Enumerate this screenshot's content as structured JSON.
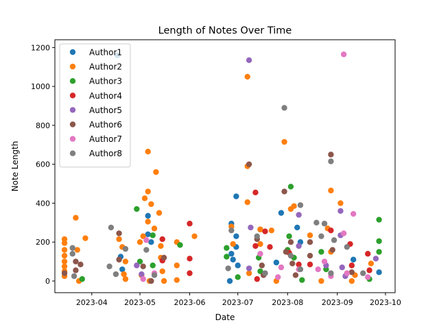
{
  "chart_data": {
    "type": "scatter",
    "title": "Length of Notes Over Time",
    "xlabel": "Date",
    "ylabel": "Note Length",
    "x_ticks": [
      "2023-04",
      "2023-05",
      "2023-06",
      "2023-07",
      "2023-08",
      "2023-09",
      "2023-10"
    ],
    "y_ticks": [
      0,
      200,
      400,
      600,
      800,
      1000,
      1200
    ],
    "xlim": [
      "2023-03-09",
      "2023-10-07"
    ],
    "ylim": [
      -60,
      1240
    ],
    "legend_position": "top-left",
    "grid": false,
    "series": [
      {
        "name": "Author1",
        "color": "#1f77b4",
        "points": [
          {
            "x": "2023-04-17",
            "y": 1160
          },
          {
            "x": "2023-04-19",
            "y": 125
          },
          {
            "x": "2023-04-20",
            "y": 60
          },
          {
            "x": "2023-05-06",
            "y": 335
          },
          {
            "x": "2023-05-06",
            "y": 240
          },
          {
            "x": "2023-05-08",
            "y": 200
          },
          {
            "x": "2023-06-27",
            "y": 295
          },
          {
            "x": "2023-06-27",
            "y": 140
          },
          {
            "x": "2023-06-28",
            "y": 110
          },
          {
            "x": "2023-06-30",
            "y": 435
          },
          {
            "x": "2023-06-30",
            "y": 230
          },
          {
            "x": "2023-06-30",
            "y": 175
          },
          {
            "x": "2023-06-26",
            "y": 0
          },
          {
            "x": "2023-07-01",
            "y": 80
          },
          {
            "x": "2023-07-15",
            "y": 265
          },
          {
            "x": "2023-07-25",
            "y": 95
          },
          {
            "x": "2023-07-28",
            "y": 350
          },
          {
            "x": "2023-08-07",
            "y": 275
          },
          {
            "x": "2023-08-09",
            "y": 200
          },
          {
            "x": "2023-09-11",
            "y": 110
          },
          {
            "x": "2023-09-27",
            "y": 45
          }
        ]
      },
      {
        "name": "Author2",
        "color": "#ff7f0e",
        "points": [
          {
            "x": "2023-03-15",
            "y": 215
          },
          {
            "x": "2023-03-15",
            "y": 195
          },
          {
            "x": "2023-03-15",
            "y": 160
          },
          {
            "x": "2023-03-15",
            "y": 130
          },
          {
            "x": "2023-03-15",
            "y": 100
          },
          {
            "x": "2023-03-15",
            "y": 75
          },
          {
            "x": "2023-03-15",
            "y": 50
          },
          {
            "x": "2023-03-15",
            "y": 25
          },
          {
            "x": "2023-03-22",
            "y": 325
          },
          {
            "x": "2023-03-23",
            "y": 160
          },
          {
            "x": "2023-03-24",
            "y": 0
          },
          {
            "x": "2023-03-28",
            "y": 220
          },
          {
            "x": "2023-04-18",
            "y": 215
          },
          {
            "x": "2023-04-20",
            "y": 175
          },
          {
            "x": "2023-04-21",
            "y": 35
          },
          {
            "x": "2023-04-22",
            "y": 10
          },
          {
            "x": "2023-04-22",
            "y": 100
          },
          {
            "x": "2023-05-01",
            "y": 200
          },
          {
            "x": "2023-05-02",
            "y": 30
          },
          {
            "x": "2023-05-03",
            "y": 230
          },
          {
            "x": "2023-05-04",
            "y": 425
          },
          {
            "x": "2023-05-06",
            "y": 665
          },
          {
            "x": "2023-05-06",
            "y": 460
          },
          {
            "x": "2023-05-06",
            "y": 305
          },
          {
            "x": "2023-05-08",
            "y": 395
          },
          {
            "x": "2023-05-11",
            "y": 560
          },
          {
            "x": "2023-05-10",
            "y": 270
          },
          {
            "x": "2023-05-13",
            "y": 350
          },
          {
            "x": "2023-05-14",
            "y": 180
          },
          {
            "x": "2023-05-14",
            "y": 120
          },
          {
            "x": "2023-05-15",
            "y": 50
          },
          {
            "x": "2023-05-16",
            "y": 0
          },
          {
            "x": "2023-05-07",
            "y": 0
          },
          {
            "x": "2023-05-24",
            "y": 200
          },
          {
            "x": "2023-05-24",
            "y": 80
          },
          {
            "x": "2023-05-24",
            "y": 5
          },
          {
            "x": "2023-06-04",
            "y": 230
          },
          {
            "x": "2023-06-27",
            "y": 280
          },
          {
            "x": "2023-06-28",
            "y": 190
          },
          {
            "x": "2023-07-07",
            "y": 1050
          },
          {
            "x": "2023-07-07",
            "y": 590
          },
          {
            "x": "2023-07-07",
            "y": 405
          },
          {
            "x": "2023-07-08",
            "y": 40
          },
          {
            "x": "2023-07-15",
            "y": 265
          },
          {
            "x": "2023-07-15",
            "y": 190
          },
          {
            "x": "2023-07-22",
            "y": 260
          },
          {
            "x": "2023-07-25",
            "y": 0
          },
          {
            "x": "2023-07-30",
            "y": 715
          },
          {
            "x": "2023-08-03",
            "y": 370
          },
          {
            "x": "2023-08-05",
            "y": 385
          },
          {
            "x": "2023-08-15",
            "y": 235
          },
          {
            "x": "2023-08-22",
            "y": 0
          },
          {
            "x": "2023-08-26",
            "y": 270
          },
          {
            "x": "2023-08-28",
            "y": 465
          },
          {
            "x": "2023-08-28",
            "y": 150
          },
          {
            "x": "2023-09-03",
            "y": 400
          },
          {
            "x": "2023-09-10",
            "y": 0
          },
          {
            "x": "2023-09-12",
            "y": 30
          },
          {
            "x": "2023-09-22",
            "y": 90
          }
        ]
      },
      {
        "name": "Author3",
        "color": "#2ca02c",
        "points": [
          {
            "x": "2023-03-26",
            "y": 10
          },
          {
            "x": "2023-04-29",
            "y": 370
          },
          {
            "x": "2023-05-01",
            "y": 100
          },
          {
            "x": "2023-05-09",
            "y": 80
          },
          {
            "x": "2023-05-09",
            "y": 235
          },
          {
            "x": "2023-05-26",
            "y": 185
          },
          {
            "x": "2023-06-24",
            "y": 170
          },
          {
            "x": "2023-06-24",
            "y": 125
          },
          {
            "x": "2023-07-01",
            "y": 20
          },
          {
            "x": "2023-07-14",
            "y": 120
          },
          {
            "x": "2023-07-15",
            "y": 50
          },
          {
            "x": "2023-08-03",
            "y": 485
          },
          {
            "x": "2023-08-02",
            "y": 230
          },
          {
            "x": "2023-08-01",
            "y": 160
          },
          {
            "x": "2023-08-05",
            "y": 120
          },
          {
            "x": "2023-08-10",
            "y": 5
          },
          {
            "x": "2023-08-22",
            "y": 150
          },
          {
            "x": "2023-08-25",
            "y": 60
          },
          {
            "x": "2023-09-21",
            "y": 10
          },
          {
            "x": "2023-09-27",
            "y": 315
          },
          {
            "x": "2023-09-27",
            "y": 205
          },
          {
            "x": "2023-09-27",
            "y": 150
          }
        ]
      },
      {
        "name": "Author4",
        "color": "#d62728",
        "points": [
          {
            "x": "2023-05-15",
            "y": 215
          },
          {
            "x": "2023-05-15",
            "y": 105
          },
          {
            "x": "2023-06-01",
            "y": 295
          },
          {
            "x": "2023-06-01",
            "y": 115
          },
          {
            "x": "2023-06-01",
            "y": 40
          },
          {
            "x": "2023-07-12",
            "y": 455
          },
          {
            "x": "2023-07-12",
            "y": 180
          },
          {
            "x": "2023-07-13",
            "y": 10
          },
          {
            "x": "2023-07-18",
            "y": 255
          },
          {
            "x": "2023-07-21",
            "y": 175
          },
          {
            "x": "2023-08-02",
            "y": 145
          },
          {
            "x": "2023-08-08",
            "y": 85
          },
          {
            "x": "2023-08-15",
            "y": 85
          },
          {
            "x": "2023-08-28",
            "y": 260
          },
          {
            "x": "2023-09-09",
            "y": 190
          },
          {
            "x": "2023-09-10",
            "y": 80
          },
          {
            "x": "2023-09-20",
            "y": 140
          },
          {
            "x": "2023-09-21",
            "y": 55
          }
        ]
      },
      {
        "name": "Author5",
        "color": "#9467bd",
        "points": [
          {
            "x": "2023-04-29",
            "y": 80
          },
          {
            "x": "2023-05-02",
            "y": 35
          },
          {
            "x": "2023-07-08",
            "y": 1135
          },
          {
            "x": "2023-07-09",
            "y": 275
          },
          {
            "x": "2023-07-08",
            "y": 65
          },
          {
            "x": "2023-08-08",
            "y": 340
          },
          {
            "x": "2023-08-08",
            "y": 180
          },
          {
            "x": "2023-08-25",
            "y": 80
          },
          {
            "x": "2023-09-03",
            "y": 360
          },
          {
            "x": "2023-09-03",
            "y": 235
          },
          {
            "x": "2023-09-04",
            "y": 70
          },
          {
            "x": "2023-09-06",
            "y": 25
          },
          {
            "x": "2023-09-25",
            "y": 115
          }
        ]
      },
      {
        "name": "Author6",
        "color": "#8c564b",
        "points": [
          {
            "x": "2023-03-15",
            "y": 40
          },
          {
            "x": "2023-03-22",
            "y": 100
          },
          {
            "x": "2023-03-25",
            "y": 85
          },
          {
            "x": "2023-03-22",
            "y": 55
          },
          {
            "x": "2023-04-18",
            "y": 245
          },
          {
            "x": "2023-04-18",
            "y": 110
          },
          {
            "x": "2023-05-03",
            "y": 75
          },
          {
            "x": "2023-05-08",
            "y": 0
          },
          {
            "x": "2023-05-16",
            "y": 120
          },
          {
            "x": "2023-07-08",
            "y": 600
          },
          {
            "x": "2023-07-13",
            "y": 215
          },
          {
            "x": "2023-07-16",
            "y": 80
          },
          {
            "x": "2023-07-17",
            "y": 30
          },
          {
            "x": "2023-07-30",
            "y": 460
          },
          {
            "x": "2023-07-31",
            "y": 150
          },
          {
            "x": "2023-08-03",
            "y": 200
          },
          {
            "x": "2023-08-04",
            "y": 90
          },
          {
            "x": "2023-08-06",
            "y": 30
          },
          {
            "x": "2023-08-15",
            "y": 200
          },
          {
            "x": "2023-08-15",
            "y": 130
          },
          {
            "x": "2023-08-28",
            "y": 650
          },
          {
            "x": "2023-08-29",
            "y": 160
          },
          {
            "x": "2023-09-10",
            "y": 45
          }
        ]
      },
      {
        "name": "Author7",
        "color": "#e377c2",
        "points": [
          {
            "x": "2023-05-05",
            "y": 210
          },
          {
            "x": "2023-05-03",
            "y": 10
          },
          {
            "x": "2023-05-10",
            "y": 40
          },
          {
            "x": "2023-07-15",
            "y": 140
          },
          {
            "x": "2023-07-26",
            "y": 20
          },
          {
            "x": "2023-07-28",
            "y": 70
          },
          {
            "x": "2023-08-08",
            "y": 60
          },
          {
            "x": "2023-08-20",
            "y": 60
          },
          {
            "x": "2023-08-24",
            "y": 100
          },
          {
            "x": "2023-08-28",
            "y": 25
          },
          {
            "x": "2023-09-05",
            "y": 1165
          },
          {
            "x": "2023-09-05",
            "y": 245
          },
          {
            "x": "2023-09-07",
            "y": 40
          },
          {
            "x": "2023-09-11",
            "y": 345
          },
          {
            "x": "2023-09-20",
            "y": 20
          }
        ]
      },
      {
        "name": "Author8",
        "color": "#7f7f7f",
        "points": [
          {
            "x": "2023-03-20",
            "y": 170
          },
          {
            "x": "2023-03-20",
            "y": 140
          },
          {
            "x": "2023-03-21",
            "y": 25
          },
          {
            "x": "2023-04-13",
            "y": 275
          },
          {
            "x": "2023-04-12",
            "y": 75
          },
          {
            "x": "2023-04-16",
            "y": 35
          },
          {
            "x": "2023-04-22",
            "y": 165
          },
          {
            "x": "2023-05-05",
            "y": 160
          },
          {
            "x": "2023-05-10",
            "y": 30
          },
          {
            "x": "2023-06-25",
            "y": 65
          },
          {
            "x": "2023-06-27",
            "y": 260
          },
          {
            "x": "2023-07-13",
            "y": 230
          },
          {
            "x": "2023-07-18",
            "y": 40
          },
          {
            "x": "2023-07-30",
            "y": 890
          },
          {
            "x": "2023-08-03",
            "y": 130
          },
          {
            "x": "2023-08-09",
            "y": 390
          },
          {
            "x": "2023-08-09",
            "y": 60
          },
          {
            "x": "2023-08-19",
            "y": 300
          },
          {
            "x": "2023-08-24",
            "y": 295
          },
          {
            "x": "2023-08-22",
            "y": 230
          },
          {
            "x": "2023-08-28",
            "y": 615
          },
          {
            "x": "2023-08-30",
            "y": 210
          },
          {
            "x": "2023-08-28",
            "y": 40
          },
          {
            "x": "2023-09-07",
            "y": 175
          },
          {
            "x": "2023-09-17",
            "y": 40
          }
        ]
      }
    ]
  }
}
